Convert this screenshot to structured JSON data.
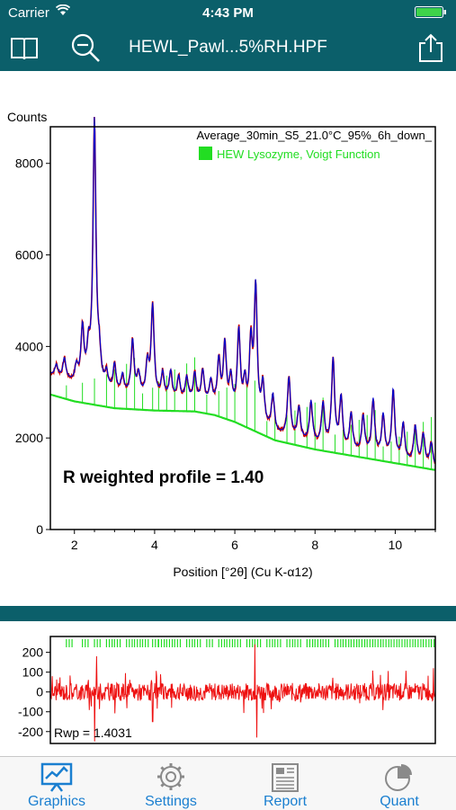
{
  "status": {
    "carrier": "Carrier",
    "time": "4:43 PM"
  },
  "nav": {
    "title": "HEWL_Pawl...5%RH.HPF"
  },
  "colors": {
    "header": "#0b5f6a",
    "observed": "#cc0000",
    "calculated": "#0000cc",
    "background_line": "#22dd22",
    "residual": "#ee1111",
    "tab_active": "#1a7fd0",
    "tab_inactive": "#8a8a8a"
  },
  "chart_data": [
    {
      "type": "line",
      "ylabel": "Counts",
      "xlabel": "Position [°2θ] (Cu K-α12)",
      "title": "Average_30min_S5_21.0°C_95%_6h_down_",
      "legend": "HEW Lysozyme, Voigt Function",
      "annotation": "R weighted profile = 1.40",
      "xlim": [
        1.4,
        11.0
      ],
      "ylim": [
        0,
        8800
      ],
      "xticks": [
        2,
        4,
        6,
        8,
        10
      ],
      "xtick_labels": [
        "2",
        "4",
        "6",
        "8",
        "10"
      ],
      "yticks": [
        0,
        2000,
        4000,
        6000,
        8000
      ],
      "ytick_labels": [
        "0",
        "2000",
        "4000",
        "6000",
        "8000"
      ],
      "background": {
        "x": [
          1.4,
          2.0,
          3.0,
          4.0,
          5.0,
          5.5,
          6.0,
          6.5,
          7.0,
          8.0,
          9.0,
          10.0,
          11.0
        ],
        "y": [
          2950,
          2800,
          2650,
          2600,
          2580,
          2500,
          2350,
          2150,
          1950,
          1750,
          1600,
          1450,
          1300
        ]
      },
      "peaks": [
        {
          "x": 1.55,
          "h": 250
        },
        {
          "x": 1.75,
          "h": 450
        },
        {
          "x": 2.05,
          "h": 350
        },
        {
          "x": 2.2,
          "h": 1200
        },
        {
          "x": 2.35,
          "h": 700
        },
        {
          "x": 2.5,
          "h": 5800
        },
        {
          "x": 2.62,
          "h": 600
        },
        {
          "x": 2.8,
          "h": 350
        },
        {
          "x": 3.0,
          "h": 600
        },
        {
          "x": 3.2,
          "h": 400
        },
        {
          "x": 3.45,
          "h": 1200
        },
        {
          "x": 3.6,
          "h": 450
        },
        {
          "x": 3.82,
          "h": 700
        },
        {
          "x": 3.95,
          "h": 2000
        },
        {
          "x": 4.2,
          "h": 550
        },
        {
          "x": 4.4,
          "h": 600
        },
        {
          "x": 4.6,
          "h": 500
        },
        {
          "x": 4.8,
          "h": 500
        },
        {
          "x": 5.0,
          "h": 600
        },
        {
          "x": 5.2,
          "h": 700
        },
        {
          "x": 5.4,
          "h": 500
        },
        {
          "x": 5.6,
          "h": 1000
        },
        {
          "x": 5.75,
          "h": 1400
        },
        {
          "x": 5.9,
          "h": 700
        },
        {
          "x": 6.1,
          "h": 1800
        },
        {
          "x": 6.25,
          "h": 700
        },
        {
          "x": 6.4,
          "h": 1600
        },
        {
          "x": 6.52,
          "h": 2900
        },
        {
          "x": 6.7,
          "h": 900
        },
        {
          "x": 6.95,
          "h": 800
        },
        {
          "x": 7.35,
          "h": 1300
        },
        {
          "x": 7.6,
          "h": 700
        },
        {
          "x": 7.9,
          "h": 900
        },
        {
          "x": 8.2,
          "h": 900
        },
        {
          "x": 8.45,
          "h": 1900
        },
        {
          "x": 8.65,
          "h": 1100
        },
        {
          "x": 8.9,
          "h": 800
        },
        {
          "x": 9.2,
          "h": 800
        },
        {
          "x": 9.45,
          "h": 1200
        },
        {
          "x": 9.7,
          "h": 900
        },
        {
          "x": 9.95,
          "h": 1500
        },
        {
          "x": 10.2,
          "h": 800
        },
        {
          "x": 10.5,
          "h": 800
        },
        {
          "x": 10.7,
          "h": 650
        },
        {
          "x": 10.9,
          "h": 500
        }
      ],
      "reflection_ticks_x": [
        1.8,
        2.2,
        2.5,
        2.8,
        3.0,
        3.3,
        3.5,
        3.7,
        3.95,
        4.1,
        4.3,
        4.5,
        4.8,
        5.0,
        5.3,
        5.6,
        5.8,
        6.0,
        6.3,
        6.5,
        6.8,
        7.0,
        7.3,
        7.5,
        7.8,
        8.0,
        8.2,
        8.5,
        8.7,
        8.9,
        9.1,
        9.3,
        9.5,
        9.7,
        9.9,
        10.1,
        10.3,
        10.5,
        10.7,
        10.9
      ]
    },
    {
      "type": "line",
      "annotation": "Rwp = 1.4031",
      "xlim": [
        1.4,
        11.0
      ],
      "ylim": [
        -260,
        280
      ],
      "yticks": [
        200,
        100,
        0,
        -100,
        -200
      ],
      "ytick_labels": [
        "200",
        "100",
        "0",
        "-100",
        "-200"
      ],
      "noise_amplitude": 45,
      "spikes": [
        {
          "x": 2.5,
          "v": -250
        },
        {
          "x": 2.55,
          "v": 180
        },
        {
          "x": 6.5,
          "v": 240
        },
        {
          "x": 6.55,
          "v": -230
        },
        {
          "x": 3.95,
          "v": -150
        },
        {
          "x": 10.95,
          "v": 120
        }
      ]
    }
  ],
  "tabs": [
    {
      "label": "Graphics",
      "icon": "graphics-icon",
      "active": true
    },
    {
      "label": "Settings",
      "icon": "gear-icon",
      "active": false
    },
    {
      "label": "Report",
      "icon": "report-icon",
      "active": false
    },
    {
      "label": "Quant",
      "icon": "pie-chart-icon",
      "active": false
    }
  ]
}
